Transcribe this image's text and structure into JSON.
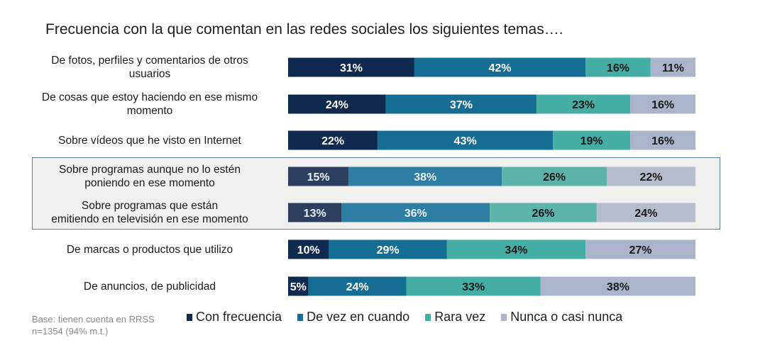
{
  "chart_data": {
    "type": "bar",
    "orientation": "horizontal",
    "stacked": true,
    "percent_stacked": true,
    "title": "Frecuencia con la que comentan en las redes sociales los siguientes temas….",
    "categories": [
      [
        "De fotos, perfiles y comentarios de otros",
        "usuarios"
      ],
      [
        "De cosas que estoy haciendo en ese mismo",
        "momento"
      ],
      [
        "Sobre vídeos que he visto en Internet"
      ],
      [
        "Sobre programas aunque no lo estén",
        "poniendo en ese momento"
      ],
      [
        "Sobre programas que están",
        "emitiendo en televisión en ese momento"
      ],
      [
        "De marcas o productos que utilizo"
      ],
      [
        "De anuncios, de publicidad"
      ]
    ],
    "series": [
      {
        "name": "Con frecuencia",
        "color": "#0f2a4e",
        "values": [
          31,
          24,
          22,
          15,
          13,
          10,
          5
        ]
      },
      {
        "name": "De vez en cuando",
        "color": "#156d94",
        "values": [
          42,
          37,
          43,
          38,
          36,
          29,
          24
        ]
      },
      {
        "name": "Rara vez",
        "color": "#45aea4",
        "values": [
          16,
          23,
          19,
          26,
          26,
          34,
          33
        ]
      },
      {
        "name": "Nunca o casi nunca",
        "color": "#aab5cc",
        "values": [
          11,
          16,
          16,
          22,
          24,
          27,
          38
        ]
      }
    ],
    "highlighted_rows": [
      3,
      4
    ],
    "highlight_series_colors": [
      "#2c3f5e",
      "#2d7ea3",
      "#5cb3aa",
      "#b5bccb"
    ],
    "value_suffix": "%",
    "legend": "bottom",
    "grid": false
  },
  "base_note": [
    "Base: tienen cuenta en RRSS",
    "n=1354 (94% m.t.)"
  ]
}
